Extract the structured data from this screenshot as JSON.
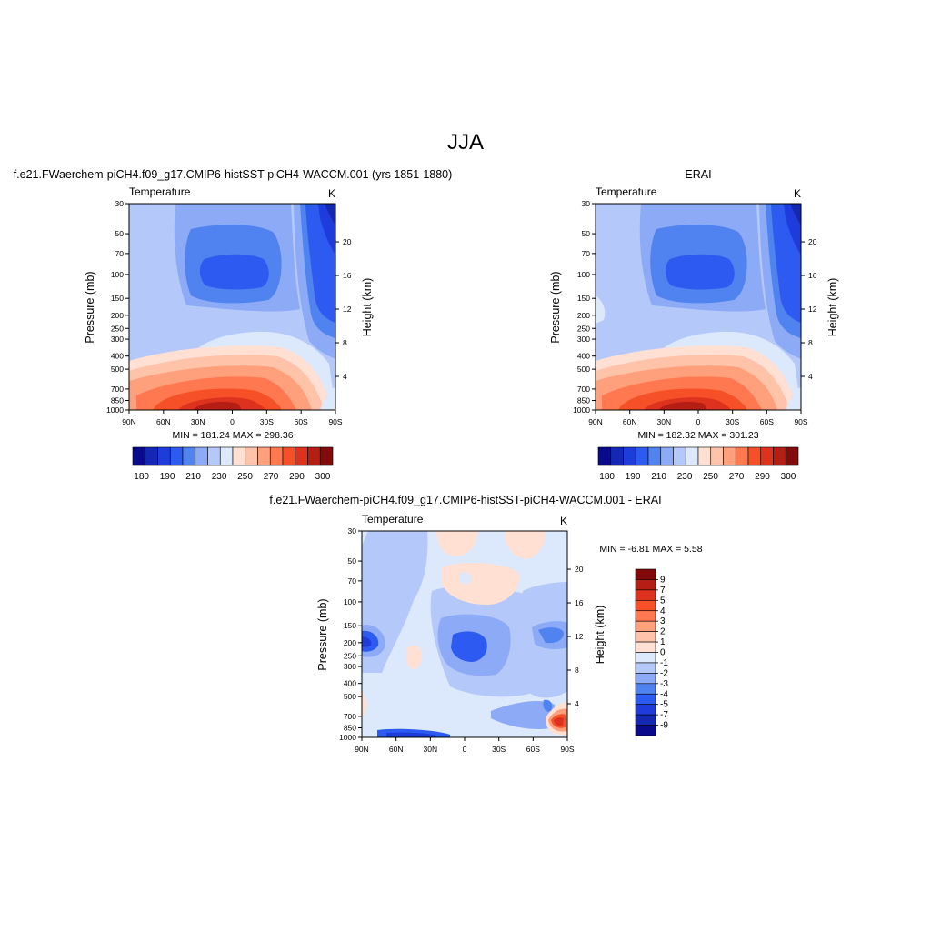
{
  "figure": {
    "title": "JJA"
  },
  "colors": {
    "temperature_levels": [
      "#0a0a8c",
      "#1428b4",
      "#1e3cdc",
      "#2d5af0",
      "#5082f0",
      "#8caaf5",
      "#b4c8fa",
      "#dce8fc",
      "#ffe0d2",
      "#ffc3aa",
      "#ffa07d",
      "#ff7850",
      "#f55028",
      "#dc321e",
      "#b41e14",
      "#820a0a"
    ],
    "difference_levels": [
      "#0a0a8c",
      "#1428b4",
      "#1e3cdc",
      "#2d5af0",
      "#5082f0",
      "#8caaf5",
      "#b4c8fa",
      "#dce8fc",
      "#ffe0d2",
      "#ffc3aa",
      "#ffa07d",
      "#ff7850",
      "#f55028",
      "#dc321e",
      "#b41e14",
      "#820a0a"
    ]
  },
  "chart_data": [
    {
      "type": "contour",
      "title": "f.e21.FWaerchem-piCH4.f09_g17.CMIP6-histSST-piCH4-WACCM.001 (yrs 1851-1880)",
      "left_label": "Temperature",
      "units": "K",
      "xlabel": "",
      "ylabel": "Pressure (mb)",
      "y2label": "Height (km)",
      "x_ticks": [
        "90N",
        "60N",
        "30N",
        "0",
        "30S",
        "60S",
        "90S"
      ],
      "y_ticks": [
        "30",
        "50",
        "70",
        "100",
        "150",
        "200",
        "250",
        "300",
        "400",
        "500",
        "700",
        "850",
        "1000"
      ],
      "y2_ticks": [
        "4",
        "8",
        "12",
        "16",
        "20"
      ],
      "min_max": "MIN = 181.24  MAX = 298.36",
      "colorbar_labels": [
        "180",
        "190",
        "210",
        "230",
        "250",
        "270",
        "290",
        "300"
      ]
    },
    {
      "type": "contour",
      "title": "ERAI",
      "left_label": "Temperature",
      "units": "K",
      "xlabel": "",
      "ylabel": "Pressure (mb)",
      "y2label": "Height (km)",
      "x_ticks": [
        "90N",
        "60N",
        "30N",
        "0",
        "30S",
        "60S",
        "90S"
      ],
      "y_ticks": [
        "30",
        "50",
        "70",
        "100",
        "150",
        "200",
        "250",
        "300",
        "400",
        "500",
        "700",
        "850",
        "1000"
      ],
      "y2_ticks": [
        "4",
        "8",
        "12",
        "16",
        "20"
      ],
      "min_max": "MIN = 182.32  MAX = 301.23",
      "colorbar_labels": [
        "180",
        "190",
        "210",
        "230",
        "250",
        "270",
        "290",
        "300"
      ]
    },
    {
      "type": "contour",
      "title": "f.e21.FWaerchem-piCH4.f09_g17.CMIP6-histSST-piCH4-WACCM.001 - ERAI",
      "left_label": "Temperature",
      "units": "K",
      "xlabel": "",
      "ylabel": "Pressure (mb)",
      "y2label": "Height (km)",
      "x_ticks": [
        "90N",
        "60N",
        "30N",
        "0",
        "30S",
        "60S",
        "90S"
      ],
      "y_ticks": [
        "30",
        "50",
        "70",
        "100",
        "150",
        "200",
        "250",
        "300",
        "400",
        "500",
        "700",
        "850",
        "1000"
      ],
      "y2_ticks": [
        "4",
        "8",
        "12",
        "16",
        "20"
      ],
      "min_max": "MIN =  -6.81  MAX =   5.58",
      "colorbar_labels": [
        "9",
        "7",
        "5",
        "4",
        "3",
        "2",
        "1",
        "0",
        "-1",
        "-2",
        "-3",
        "-4",
        "-5",
        "-7",
        "-9"
      ]
    }
  ]
}
